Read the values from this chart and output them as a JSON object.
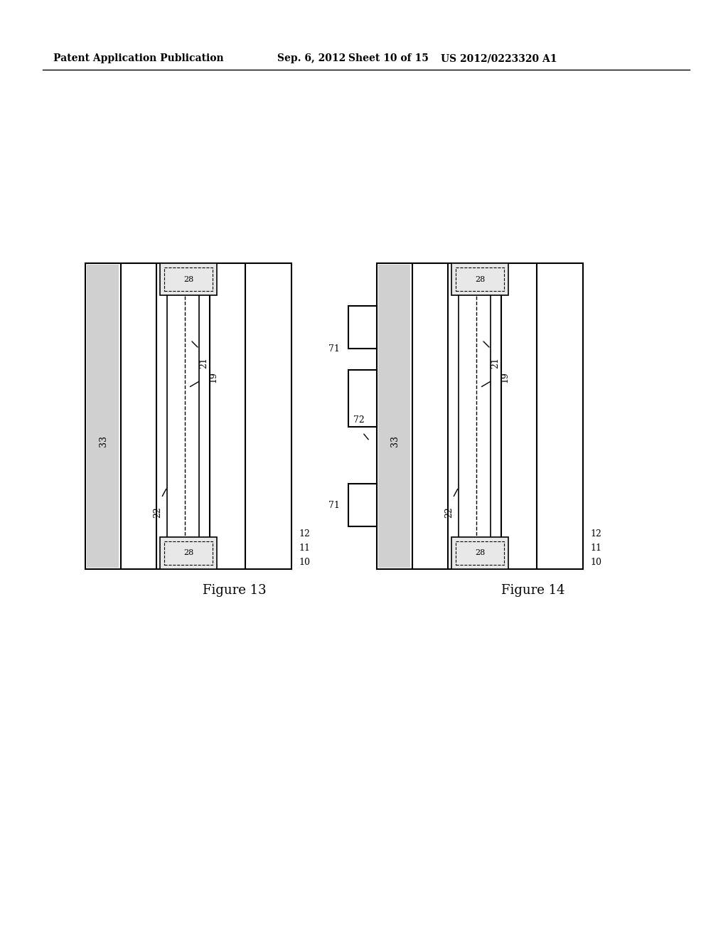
{
  "bg_color": "#ffffff",
  "header_text": "Patent Application Publication",
  "header_date": "Sep. 6, 2012",
  "header_sheet": "Sheet 10 of 15",
  "header_patent": "US 2012/0223320 A1",
  "fig13_label": "Figure 13",
  "fig14_label": "Figure 14",
  "fig_width": 1024,
  "fig_height": 1320
}
